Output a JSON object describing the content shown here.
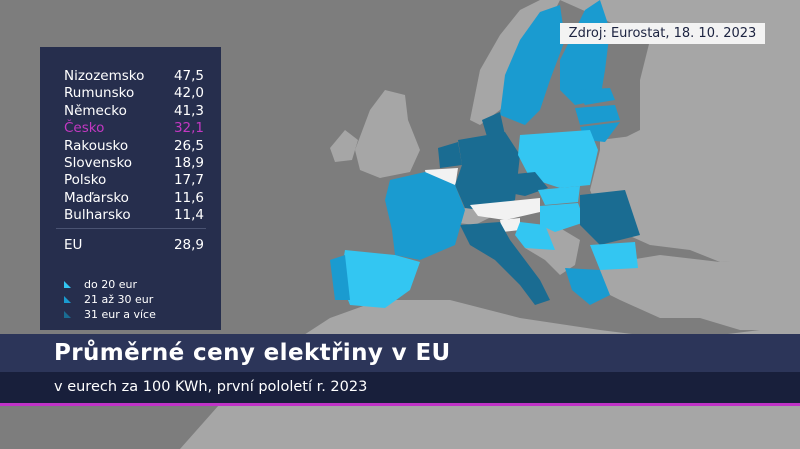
{
  "source": "Zdroj: Eurostat, 18. 10. 2023",
  "countries": [
    {
      "name": "Nizozemsko",
      "value": "47,5",
      "highlight": false
    },
    {
      "name": "Rumunsko",
      "value": "42,0",
      "highlight": false
    },
    {
      "name": "Německo",
      "value": "41,3",
      "highlight": false
    },
    {
      "name": "Česko",
      "value": "32,1",
      "highlight": true
    },
    {
      "name": "Rakousko",
      "value": "26,5",
      "highlight": false
    },
    {
      "name": "Slovensko",
      "value": "18,9",
      "highlight": false
    },
    {
      "name": "Polsko",
      "value": "17,7",
      "highlight": false
    },
    {
      "name": "Maďarsko",
      "value": "11,6",
      "highlight": false
    },
    {
      "name": "Bulharsko",
      "value": "11,4",
      "highlight": false
    }
  ],
  "eu": {
    "name": "EU",
    "value": "28,9"
  },
  "legend": [
    {
      "label": "do 20 eur",
      "color": "#33c6f2"
    },
    {
      "label": "21 až 30 eur",
      "color": "#1a9bd0"
    },
    {
      "label": "31 eur a více",
      "color": "#1a6c92"
    }
  ],
  "colors": {
    "no_data": "#f2f2f2",
    "non_eu_land": "#a6a6a6",
    "sea": "#7d7d7d",
    "highlight": "#c338c2",
    "panel": "#262e4d"
  },
  "title": "Průměrné ceny elektřiny v EU",
  "subtitle": "v eurech za 100 KWh, první pololetí r. 2023"
}
